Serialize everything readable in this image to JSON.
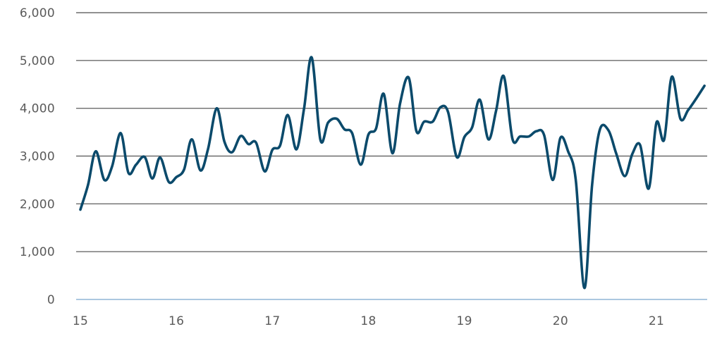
{
  "chart_data": {
    "type": "line",
    "title": "",
    "xlabel": "",
    "ylabel": "",
    "ylim": [
      0,
      6000
    ],
    "xlim": [
      15,
      21.5
    ],
    "x_ticks": [
      "15",
      "16",
      "17",
      "18",
      "19",
      "20",
      "21"
    ],
    "y_ticks": [
      "0",
      "1,000",
      "2,000",
      "3,000",
      "4,000",
      "5,000",
      "6,000"
    ],
    "grid": true,
    "legend": "none",
    "colors": {
      "series": "#0b4a6b",
      "grid": "#6b6b6b",
      "baseline": "#8fb6d6",
      "tick_text": "#5a5a5a"
    },
    "series": [
      {
        "points": [
          [
            15.0,
            1880
          ],
          [
            15.08,
            2400
          ],
          [
            15.16,
            3100
          ],
          [
            15.25,
            2500
          ],
          [
            15.33,
            2780
          ],
          [
            15.42,
            3480
          ],
          [
            15.5,
            2650
          ],
          [
            15.58,
            2820
          ],
          [
            15.67,
            2980
          ],
          [
            15.75,
            2530
          ],
          [
            15.83,
            2970
          ],
          [
            15.92,
            2460
          ],
          [
            16.0,
            2560
          ],
          [
            16.08,
            2720
          ],
          [
            16.16,
            3350
          ],
          [
            16.25,
            2700
          ],
          [
            16.33,
            3150
          ],
          [
            16.42,
            4000
          ],
          [
            16.5,
            3300
          ],
          [
            16.58,
            3080
          ],
          [
            16.67,
            3420
          ],
          [
            16.75,
            3250
          ],
          [
            16.83,
            3280
          ],
          [
            16.92,
            2680
          ],
          [
            17.0,
            3130
          ],
          [
            17.08,
            3220
          ],
          [
            17.16,
            3860
          ],
          [
            17.25,
            3140
          ],
          [
            17.33,
            4000
          ],
          [
            17.41,
            5060
          ],
          [
            17.5,
            3340
          ],
          [
            17.58,
            3700
          ],
          [
            17.67,
            3780
          ],
          [
            17.75,
            3560
          ],
          [
            17.83,
            3480
          ],
          [
            17.92,
            2820
          ],
          [
            18.0,
            3450
          ],
          [
            18.08,
            3580
          ],
          [
            18.16,
            4300
          ],
          [
            18.25,
            3060
          ],
          [
            18.33,
            4100
          ],
          [
            18.42,
            4640
          ],
          [
            18.5,
            3520
          ],
          [
            18.58,
            3720
          ],
          [
            18.67,
            3720
          ],
          [
            18.75,
            4020
          ],
          [
            18.83,
            3920
          ],
          [
            18.92,
            2980
          ],
          [
            19.0,
            3400
          ],
          [
            19.08,
            3600
          ],
          [
            19.16,
            4180
          ],
          [
            19.25,
            3350
          ],
          [
            19.33,
            3950
          ],
          [
            19.41,
            4670
          ],
          [
            19.5,
            3360
          ],
          [
            19.58,
            3410
          ],
          [
            19.67,
            3410
          ],
          [
            19.75,
            3520
          ],
          [
            19.83,
            3440
          ],
          [
            19.92,
            2500
          ],
          [
            20.0,
            3380
          ],
          [
            20.08,
            3100
          ],
          [
            20.16,
            2500
          ],
          [
            20.25,
            240
          ],
          [
            20.33,
            2400
          ],
          [
            20.41,
            3550
          ],
          [
            20.5,
            3540
          ],
          [
            20.58,
            3060
          ],
          [
            20.67,
            2580
          ],
          [
            20.75,
            3050
          ],
          [
            20.83,
            3230
          ],
          [
            20.92,
            2320
          ],
          [
            21.0,
            3700
          ],
          [
            21.08,
            3340
          ],
          [
            21.16,
            4660
          ],
          [
            21.25,
            3780
          ],
          [
            21.33,
            3960
          ],
          [
            21.42,
            4220
          ],
          [
            21.5,
            4470
          ]
        ]
      }
    ]
  }
}
